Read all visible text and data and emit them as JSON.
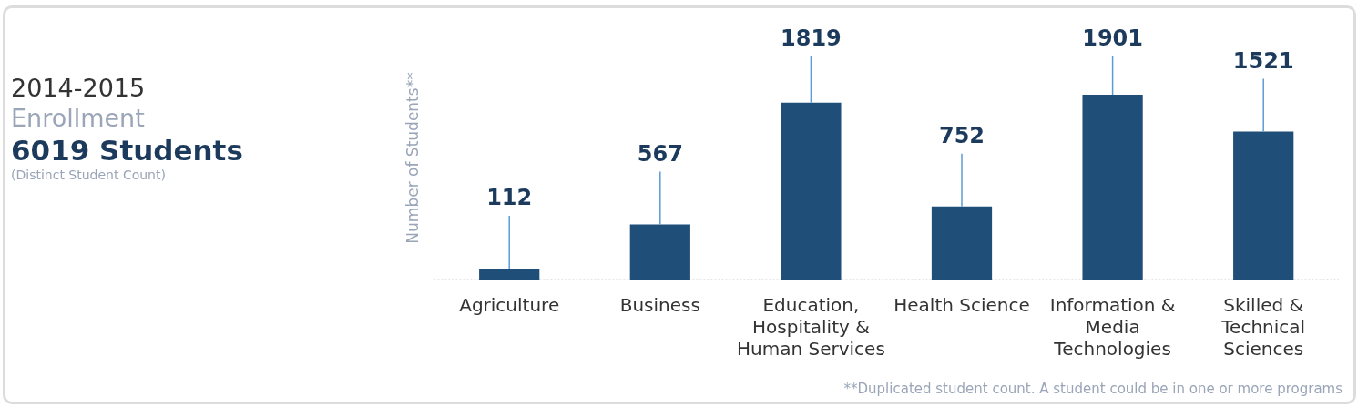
{
  "chart_data": {
    "type": "bar",
    "title": "2014-2015",
    "subtitle": "Enrollment",
    "ylabel": "Number of Students**",
    "categories": [
      "Agriculture",
      "Business",
      "Education, Hospitality & Human Services",
      "Health Science",
      "Information & Media Technologies",
      "Skilled & Technical Sciences"
    ],
    "values": [
      112,
      567,
      1819,
      752,
      1901,
      1521
    ],
    "color": "#1f4e79",
    "data_labels": true,
    "legend": false,
    "grid": false,
    "annotations": [
      "6019 Students",
      "(Distinct Student Count)",
      "**Duplicated student count. A student could be in one or more programs"
    ]
  }
}
